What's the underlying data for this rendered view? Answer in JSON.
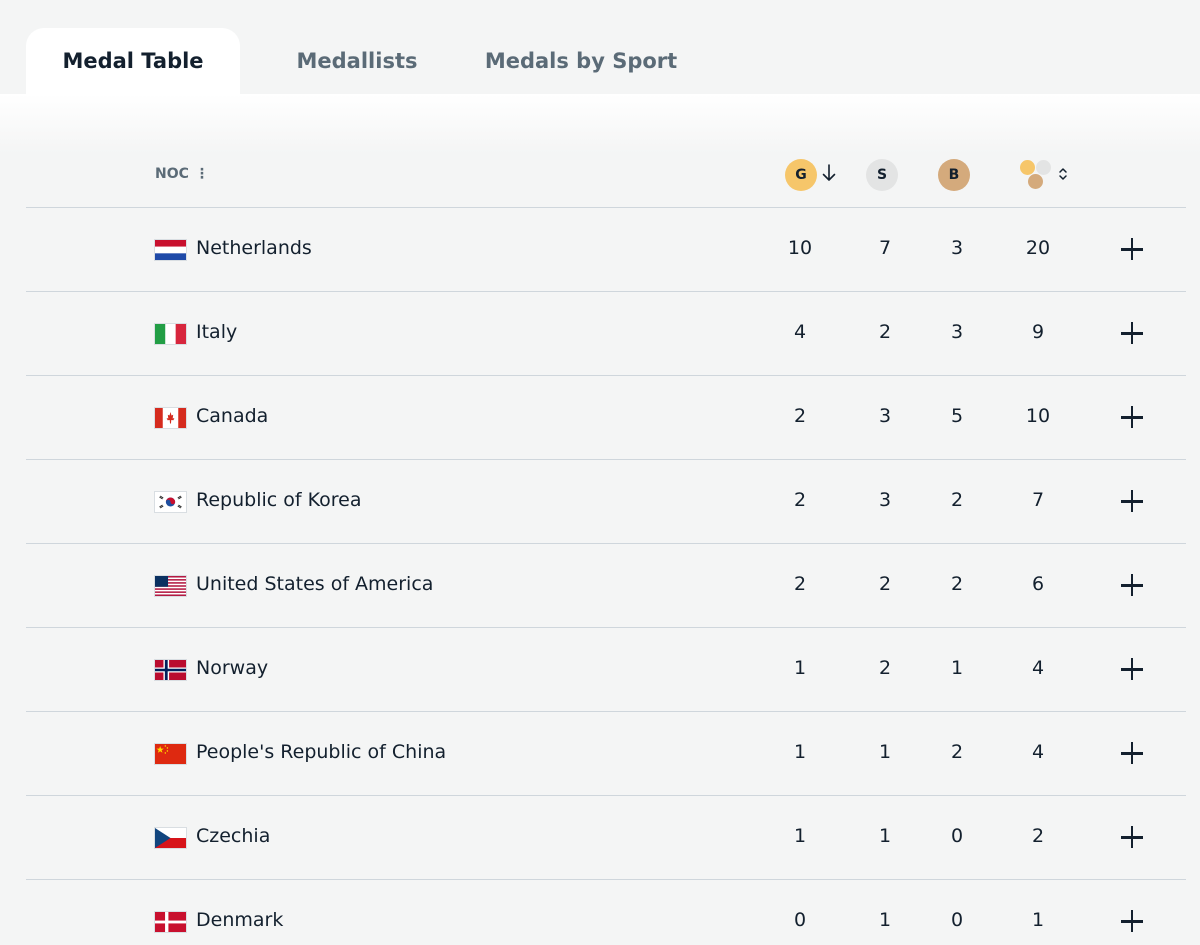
{
  "tabs": [
    {
      "label": "Medal Table",
      "active": true
    },
    {
      "label": "Medallists",
      "active": false
    },
    {
      "label": "Medals by Sport",
      "active": false
    }
  ],
  "table": {
    "noc_header": "NOC",
    "gold_header": "G",
    "silver_header": "S",
    "bronze_header": "B",
    "sort_column": "gold",
    "sort_direction": "descending",
    "colors": {
      "gold": "#f6c66a",
      "silver": "#e3e4e4",
      "bronze": "#d4aa7c"
    },
    "rows": [
      {
        "country": "Netherlands",
        "flag": "netherlands-flag",
        "gold": "10",
        "silver": "7",
        "bronze": "3",
        "total": "20"
      },
      {
        "country": "Italy",
        "flag": "italy-flag",
        "gold": "4",
        "silver": "2",
        "bronze": "3",
        "total": "9"
      },
      {
        "country": "Canada",
        "flag": "canada-flag",
        "gold": "2",
        "silver": "3",
        "bronze": "5",
        "total": "10"
      },
      {
        "country": "Republic of Korea",
        "flag": "korea-flag",
        "gold": "2",
        "silver": "3",
        "bronze": "2",
        "total": "7"
      },
      {
        "country": "United States of America",
        "flag": "usa-flag",
        "gold": "2",
        "silver": "2",
        "bronze": "2",
        "total": "6"
      },
      {
        "country": "Norway",
        "flag": "norway-flag",
        "gold": "1",
        "silver": "2",
        "bronze": "1",
        "total": "4"
      },
      {
        "country": "People's Republic of China",
        "flag": "china-flag",
        "gold": "1",
        "silver": "1",
        "bronze": "2",
        "total": "4"
      },
      {
        "country": "Czechia",
        "flag": "czechia-flag",
        "gold": "1",
        "silver": "1",
        "bronze": "0",
        "total": "2"
      },
      {
        "country": "Denmark",
        "flag": "denmark-flag",
        "gold": "0",
        "silver": "1",
        "bronze": "0",
        "total": "1"
      }
    ]
  }
}
